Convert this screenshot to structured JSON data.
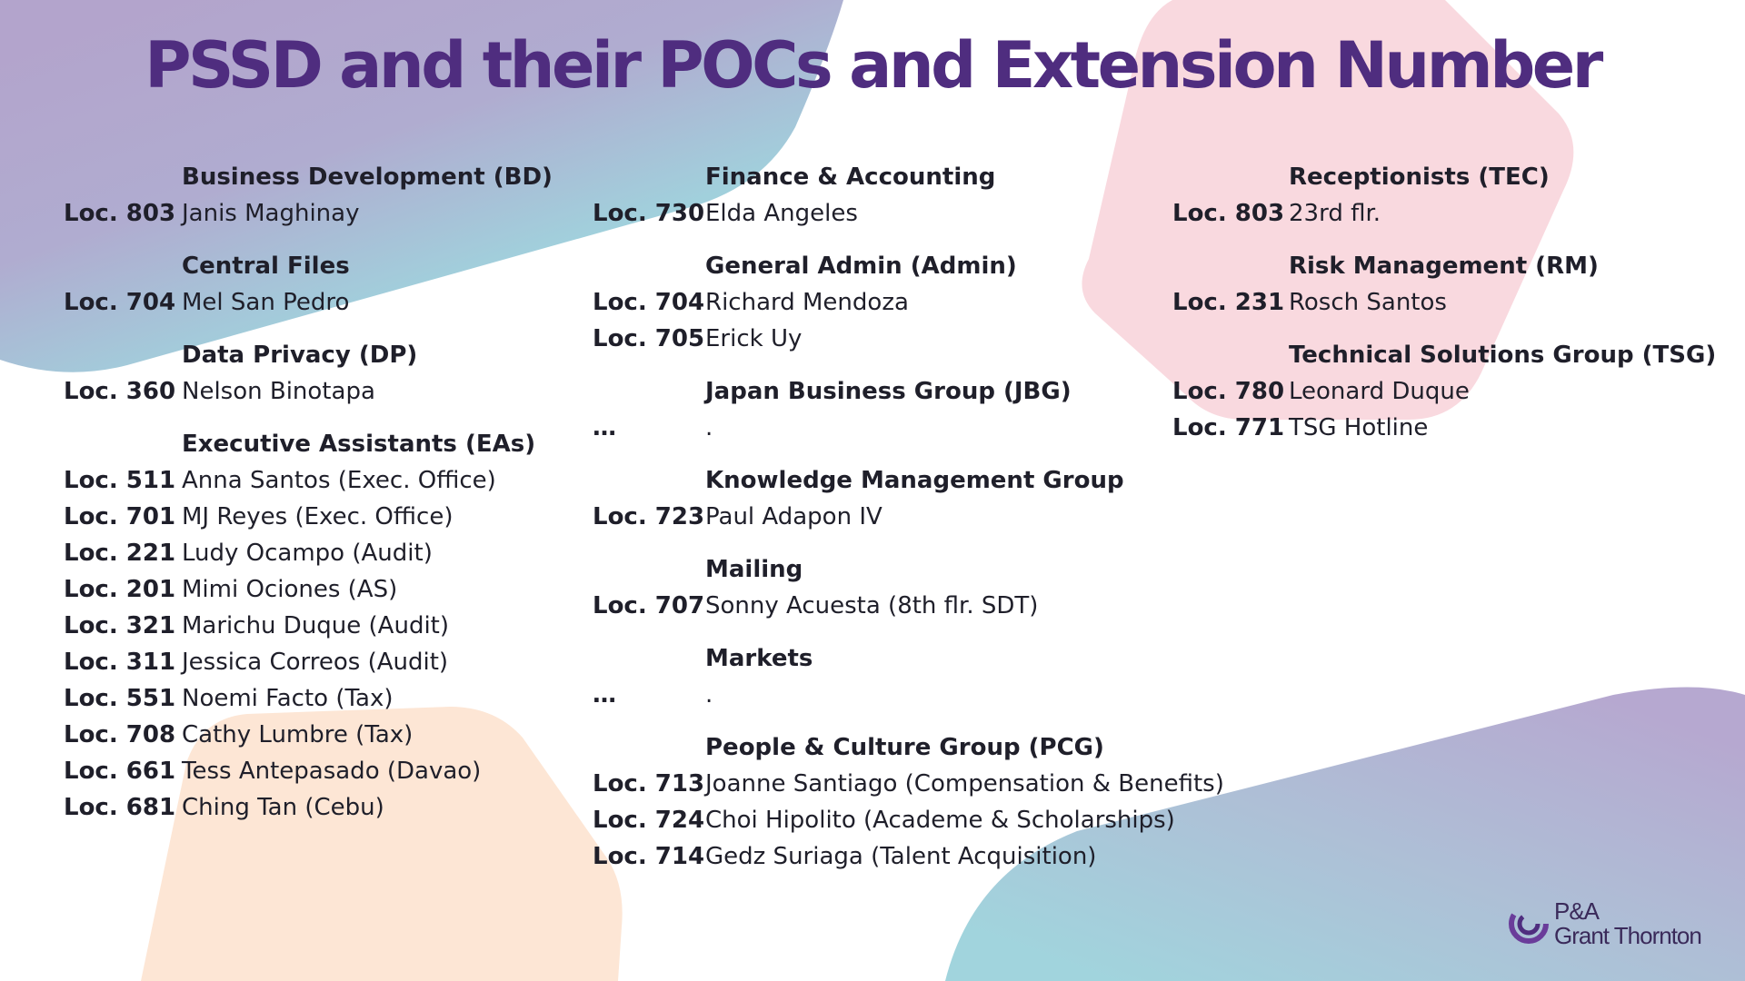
{
  "title": "PSSD and their POCs and Extension Number",
  "columns": [
    {
      "sections": [
        {
          "heading": "Business Development (BD)",
          "entries": [
            {
              "loc": "Loc. 803",
              "name": "Janis Maghinay"
            }
          ]
        },
        {
          "heading": "Central Files",
          "entries": [
            {
              "loc": "Loc. 704",
              "name": "Mel San Pedro"
            }
          ]
        },
        {
          "heading": "Data Privacy (DP)",
          "entries": [
            {
              "loc": "Loc. 360",
              "name": "Nelson Binotapa"
            }
          ]
        },
        {
          "heading": "Executive Assistants (EAs)",
          "entries": [
            {
              "loc": "Loc. 511",
              "name": "Anna Santos (Exec. Office)"
            },
            {
              "loc": "Loc. 701",
              "name": "MJ Reyes (Exec. Office)"
            },
            {
              "loc": "Loc. 221",
              "name": "Ludy Ocampo (Audit)"
            },
            {
              "loc": "Loc. 201",
              "name": "Mimi Ociones (AS)"
            },
            {
              "loc": "Loc. 321",
              "name": "Marichu Duque (Audit)"
            },
            {
              "loc": "Loc. 311",
              "name": "Jessica Correos (Audit)"
            },
            {
              "loc": "Loc. 551",
              "name": "Noemi Facto (Tax)"
            },
            {
              "loc": "Loc. 708",
              "name": "Cathy Lumbre (Tax)"
            },
            {
              "loc": "Loc. 661",
              "name": "Tess Antepasado (Davao)"
            },
            {
              "loc": "Loc. 681",
              "name": "Ching Tan (Cebu)"
            }
          ]
        }
      ]
    },
    {
      "sections": [
        {
          "heading": "Finance & Accounting",
          "entries": [
            {
              "loc": "Loc. 730",
              "name": "Elda Angeles"
            }
          ]
        },
        {
          "heading": "General Admin (Admin)",
          "entries": [
            {
              "loc": "Loc. 704",
              "name": "Richard Mendoza"
            },
            {
              "loc": "Loc. 705",
              "name": "Erick Uy"
            }
          ]
        },
        {
          "heading": "Japan Business Group (JBG)",
          "entries": [
            {
              "loc": "…",
              "name": "."
            }
          ]
        },
        {
          "heading": "Knowledge Management Group",
          "entries": [
            {
              "loc": "Loc. 723",
              "name": "Paul Adapon IV"
            }
          ]
        },
        {
          "heading": "Mailing",
          "entries": [
            {
              "loc": "Loc. 707",
              "name": "Sonny Acuesta (8th flr. SDT)"
            }
          ]
        },
        {
          "heading": "Markets",
          "entries": [
            {
              "loc": "…",
              "name": "."
            }
          ]
        },
        {
          "heading": "People & Culture Group (PCG)",
          "entries": [
            {
              "loc": "Loc. 713",
              "name": "Joanne Santiago (Compensation & Benefits)"
            },
            {
              "loc": "Loc. 724",
              "name": "Choi Hipolito (Academe & Scholarships)"
            },
            {
              "loc": "Loc. 714",
              "name": "Gedz Suriaga (Talent Acquisition)"
            }
          ]
        }
      ]
    },
    {
      "sections": [
        {
          "heading": "Receptionists (TEC)",
          "entries": [
            {
              "loc": "Loc. 803",
              "name": "23rd flr."
            }
          ]
        },
        {
          "heading": "Risk Management (RM)",
          "entries": [
            {
              "loc": "Loc. 231",
              "name": "Rosch Santos"
            }
          ]
        },
        {
          "heading": "Technical Solutions Group (TSG)",
          "entries": [
            {
              "loc": "Loc. 780",
              "name": "Leonard Duque"
            },
            {
              "loc": "Loc. 771",
              "name": "TSG Hotline"
            }
          ]
        }
      ]
    }
  ],
  "logo": {
    "line1": "P&A",
    "line2": "Grant Thornton"
  },
  "colors": {
    "title": "#4f2d7f",
    "purple_shape": "#b3a4cc",
    "teal_shape": "#a1d0dc",
    "pink_shape": "#f9d9df",
    "peach_shape": "#fde6d5"
  }
}
